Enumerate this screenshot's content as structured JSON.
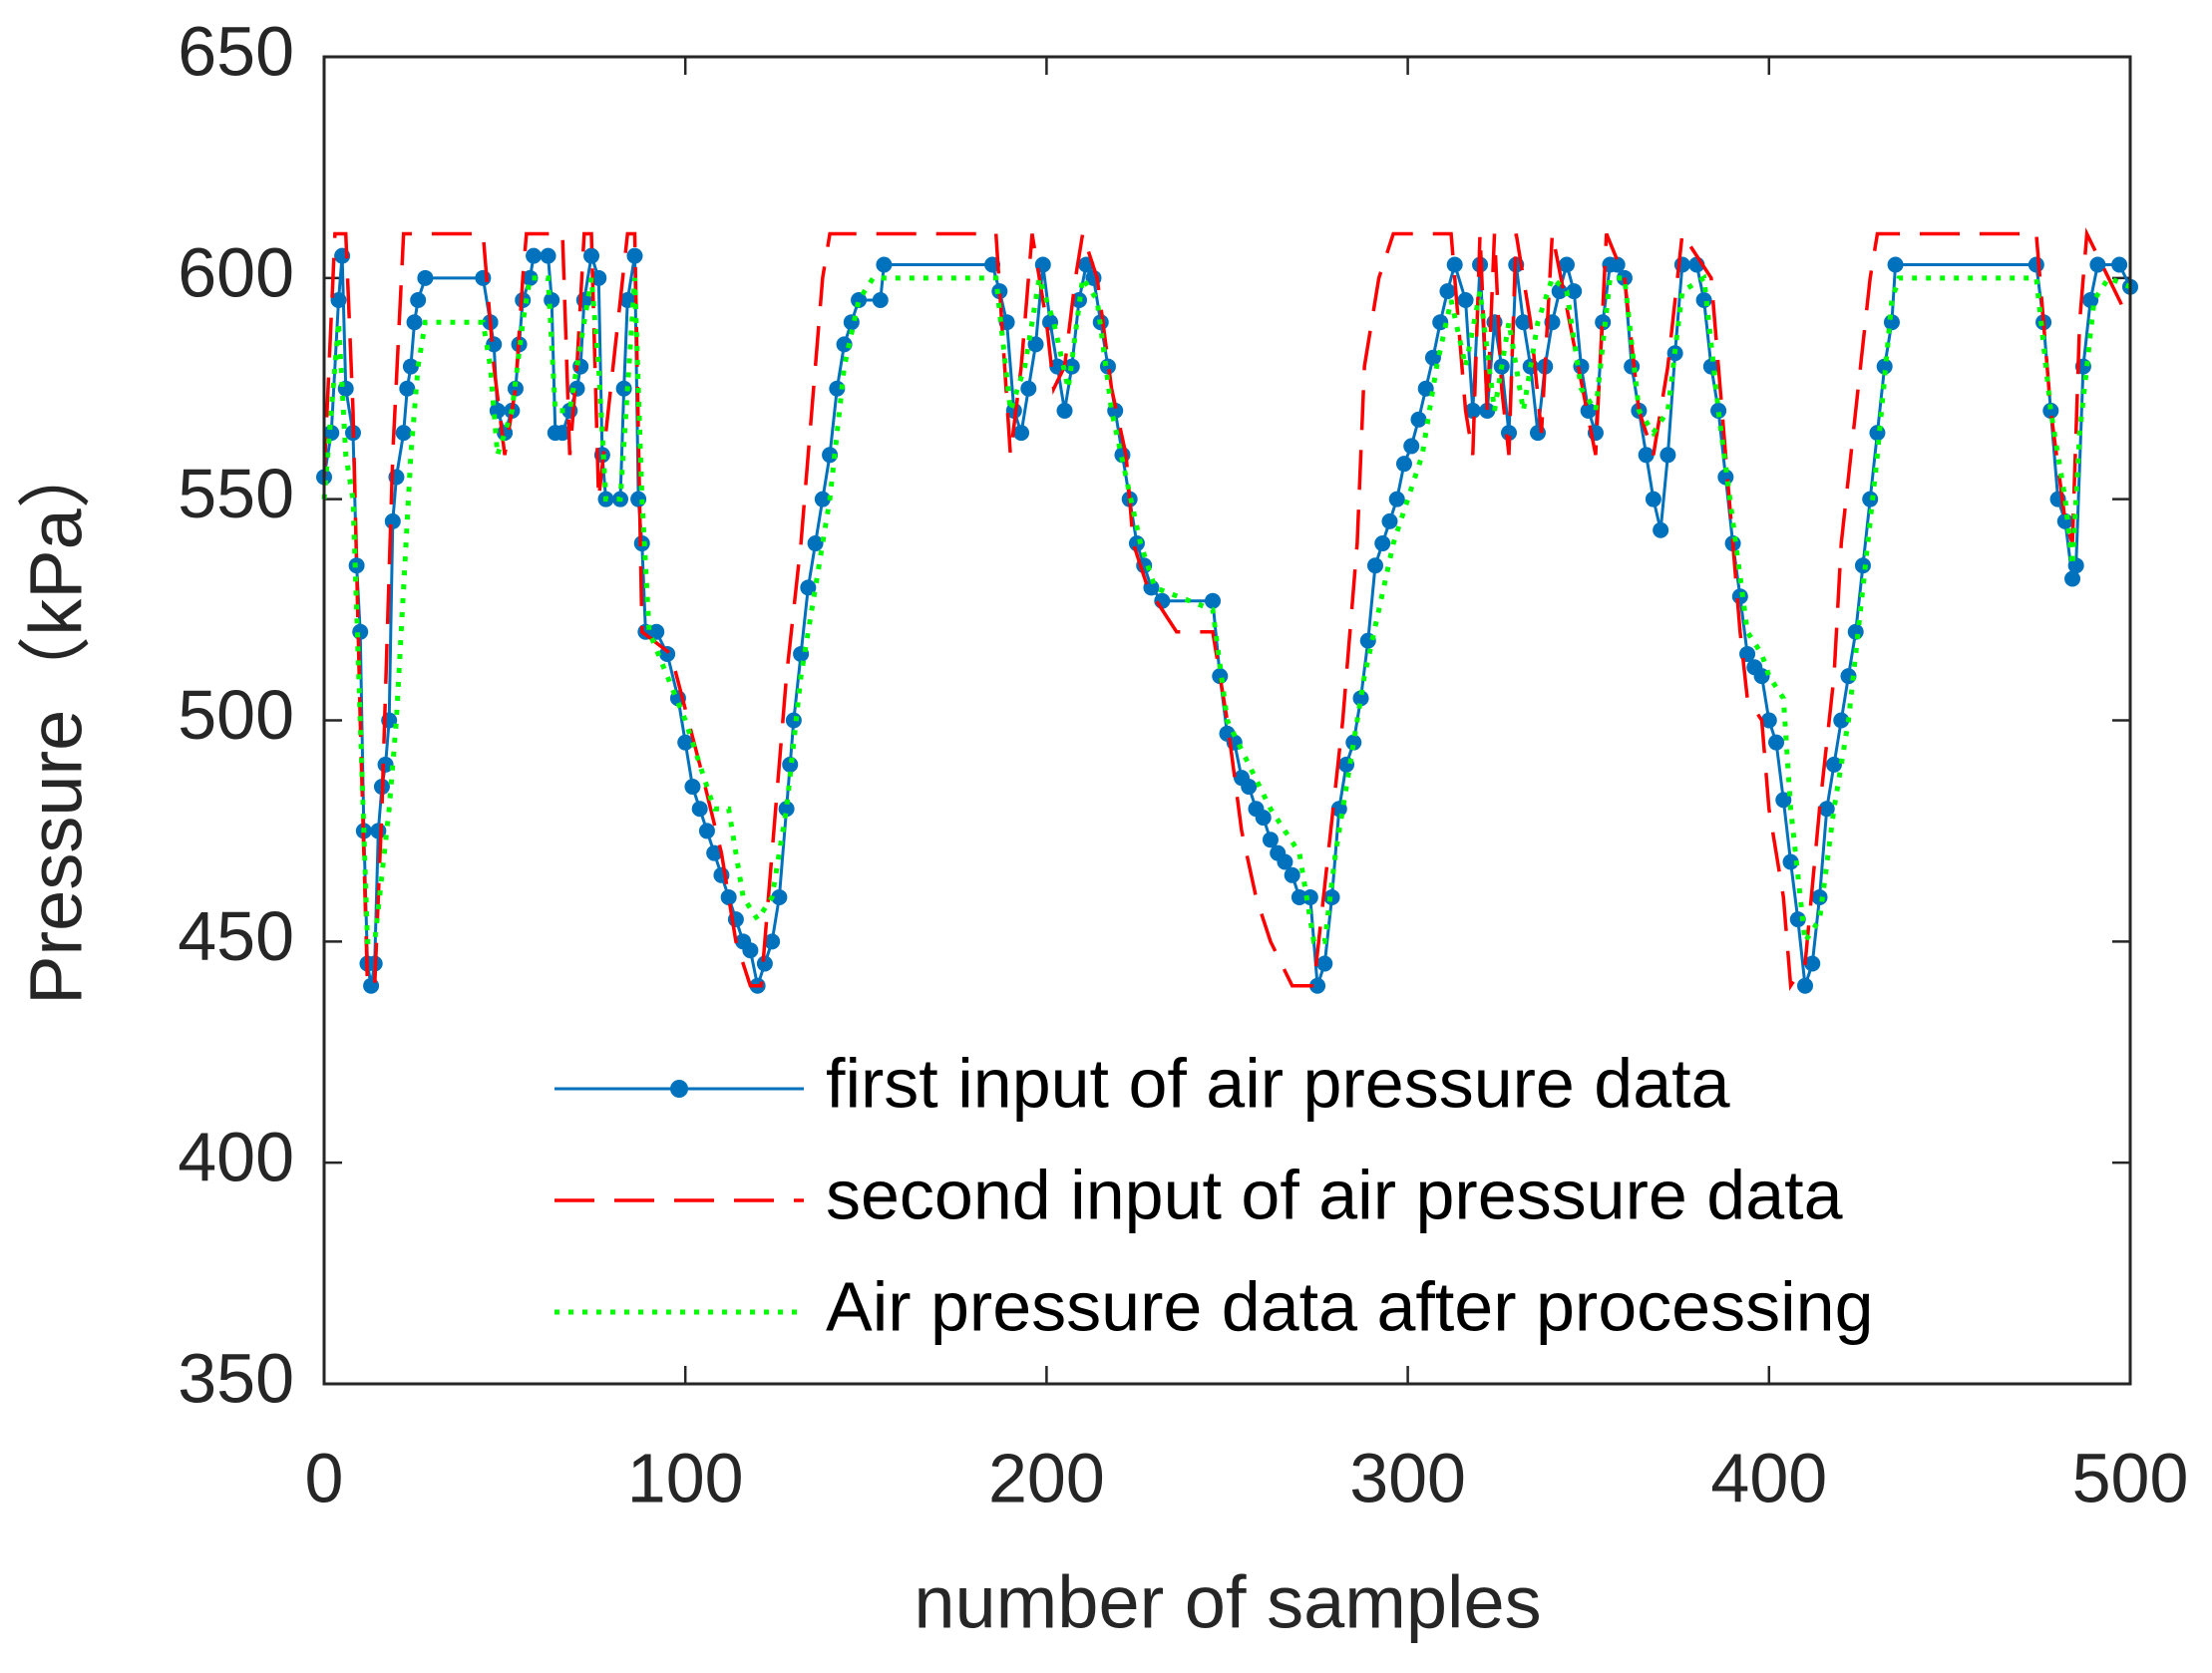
{
  "chart_data": {
    "type": "line",
    "xlabel": "number of samples",
    "ylabel": "Pressure（kPa）",
    "xlim": [
      0,
      500
    ],
    "xticks": [
      0,
      100,
      200,
      300,
      400,
      500
    ],
    "ylim": [
      350,
      650
    ],
    "yticks": [
      350,
      400,
      450,
      500,
      550,
      600,
      650
    ],
    "grid": false,
    "legend": "south",
    "series": [
      {
        "name": "first input of air pressure data",
        "color": "#0072BD",
        "style": "solid-marker",
        "x": [
          0,
          2,
          4,
          5,
          6,
          8,
          9,
          10,
          11,
          12,
          13,
          14,
          15,
          16,
          17,
          18,
          19,
          20,
          22,
          23,
          24,
          25,
          26,
          28,
          44,
          46,
          47,
          48,
          50,
          52,
          53,
          54,
          55,
          57,
          58,
          62,
          63,
          64,
          66,
          68,
          70,
          71,
          72,
          74,
          76,
          77,
          78,
          82,
          83,
          84,
          86,
          87,
          88,
          89,
          92,
          95,
          98,
          100,
          102,
          104,
          106,
          108,
          110,
          112,
          114,
          116,
          118,
          120,
          122,
          124,
          126,
          128,
          129,
          130,
          132,
          134,
          136,
          138,
          140,
          142,
          144,
          146,
          148,
          154,
          155,
          185,
          187,
          189,
          191,
          193,
          195,
          197,
          199,
          201,
          203,
          205,
          207,
          209,
          211,
          213,
          215,
          217,
          219,
          221,
          223,
          225,
          227,
          229,
          232,
          246,
          248,
          250,
          252,
          254,
          256,
          258,
          260,
          262,
          264,
          266,
          268,
          270,
          273,
          275,
          277,
          279,
          281,
          283,
          285,
          287,
          289,
          291,
          293,
          295,
          297,
          299,
          301,
          303,
          305,
          307,
          309,
          311,
          313,
          316,
          318,
          320,
          322,
          324,
          326,
          328,
          330,
          332,
          334,
          336,
          338,
          340,
          342,
          344,
          346,
          348,
          350,
          352,
          354,
          356,
          358,
          360,
          362,
          364,
          366,
          368,
          370,
          372,
          374,
          376,
          380,
          382,
          384,
          386,
          388,
          390,
          392,
          394,
          396,
          398,
          400,
          402,
          404,
          406,
          408,
          410,
          412,
          414,
          416,
          418,
          420,
          422,
          424,
          426,
          428,
          430,
          432,
          434,
          435,
          474,
          476,
          478,
          480,
          482,
          484,
          485,
          487,
          489,
          491,
          497,
          500
        ],
        "values": [
          555,
          565,
          595,
          605,
          575,
          565,
          535,
          520,
          475,
          445,
          440,
          445,
          475,
          485,
          490,
          500,
          545,
          555,
          565,
          575,
          580,
          590,
          595,
          600,
          600,
          590,
          585,
          570,
          565,
          570,
          575,
          585,
          595,
          600,
          605,
          605,
          595,
          565,
          565,
          570,
          575,
          580,
          595,
          605,
          600,
          560,
          550,
          550,
          575,
          595,
          605,
          550,
          540,
          520,
          520,
          515,
          505,
          495,
          485,
          480,
          475,
          470,
          465,
          460,
          455,
          450,
          448,
          440,
          445,
          450,
          460,
          480,
          490,
          500,
          515,
          530,
          540,
          550,
          560,
          575,
          585,
          590,
          595,
          595,
          603,
          603,
          597,
          590,
          570,
          565,
          575,
          585,
          603,
          590,
          580,
          570,
          580,
          595,
          603,
          600,
          590,
          580,
          570,
          560,
          550,
          540,
          535,
          530,
          527,
          527,
          510,
          497,
          495,
          487,
          485,
          480,
          478,
          473,
          470,
          468,
          465,
          460,
          460,
          440,
          445,
          460,
          480,
          490,
          495,
          505,
          518,
          535,
          540,
          545,
          550,
          558,
          562,
          568,
          575,
          582,
          590,
          597,
          603,
          595,
          570,
          603,
          570,
          590,
          580,
          565,
          603,
          590,
          580,
          565,
          580,
          590,
          597,
          603,
          597,
          580,
          570,
          565,
          590,
          603,
          603,
          600,
          580,
          570,
          560,
          550,
          543,
          560,
          583,
          603,
          603,
          595,
          580,
          570,
          555,
          540,
          528,
          515,
          512,
          510,
          500,
          495,
          482,
          468,
          455,
          440,
          445,
          460,
          480,
          490,
          500,
          510,
          520,
          535,
          550,
          565,
          580,
          590,
          603,
          603,
          590,
          570,
          550,
          545,
          532,
          535,
          580,
          595,
          603,
          603,
          598
        ]
      },
      {
        "name": "second input of air pressure data",
        "color": "#FF0000",
        "style": "dashed",
        "x": [
          0,
          3,
          6,
          8,
          10,
          12,
          14,
          16,
          19,
          22,
          34,
          44,
          47,
          50,
          53,
          55,
          56,
          66,
          68,
          70,
          72,
          74,
          76,
          84,
          86,
          88,
          96,
          104,
          110,
          114,
          118,
          121,
          124,
          128,
          132,
          136,
          138,
          140,
          186,
          188,
          190,
          193,
          196,
          200,
          202,
          205,
          208,
          210,
          214,
          218,
          222,
          224,
          228,
          236,
          246,
          250,
          254,
          258,
          262,
          268,
          274,
          278,
          282,
          286,
          288,
          290,
          292,
          296,
          312,
          316,
          318,
          320,
          322,
          324,
          326,
          328,
          330,
          334,
          337,
          340,
          352,
          355,
          360,
          364,
          368,
          372,
          376,
          384,
          386,
          388,
          392,
          394,
          398,
          400,
          404,
          406,
          410,
          414,
          418,
          420,
          424,
          428,
          430,
          474,
          476,
          478,
          482,
          484,
          486,
          488,
          500
        ],
        "values": [
          555,
          610,
          610,
          570,
          500,
          440,
          440,
          480,
          560,
          610,
          610,
          610,
          580,
          560,
          575,
          600,
          610,
          610,
          560,
          580,
          610,
          610,
          550,
          610,
          610,
          520,
          515,
          490,
          470,
          450,
          440,
          440,
          470,
          510,
          540,
          580,
          600,
          610,
          610,
          585,
          560,
          580,
          610,
          590,
          575,
          580,
          600,
          610,
          600,
          575,
          560,
          540,
          530,
          520,
          520,
          500,
          475,
          460,
          450,
          440,
          440,
          470,
          500,
          540,
          580,
          590,
          600,
          610,
          610,
          570,
          560,
          610,
          570,
          610,
          575,
          560,
          610,
          590,
          565,
          610,
          560,
          610,
          600,
          570,
          560,
          580,
          610,
          600,
          580,
          560,
          520,
          505,
          500,
          480,
          460,
          440,
          445,
          480,
          510,
          540,
          570,
          600,
          610,
          610,
          590,
          570,
          545,
          540,
          590,
          610,
          590
        ]
      },
      {
        "name": "Air pressure data after processing",
        "color": "#00FF00",
        "style": "dotted",
        "x": [
          0,
          4,
          6,
          8,
          10,
          12,
          14,
          18,
          20,
          22,
          24,
          26,
          28,
          44,
          46,
          48,
          52,
          55,
          57,
          62,
          64,
          68,
          72,
          74,
          76,
          78,
          82,
          86,
          88,
          90,
          100,
          104,
          108,
          112,
          116,
          120,
          124,
          128,
          132,
          136,
          140,
          144,
          148,
          152,
          186,
          190,
          194,
          198,
          202,
          206,
          210,
          214,
          218,
          222,
          226,
          230,
          246,
          250,
          256,
          262,
          266,
          270,
          274,
          277,
          280,
          284,
          288,
          292,
          296,
          300,
          304,
          308,
          312,
          316,
          320,
          324,
          328,
          332,
          336,
          340,
          344,
          348,
          352,
          356,
          360,
          364,
          368,
          372,
          376,
          382,
          386,
          390,
          394,
          398,
          400,
          404,
          406,
          410,
          414,
          418,
          422,
          426,
          430,
          434,
          436,
          474,
          478,
          482,
          484,
          486,
          490,
          494,
          500
        ],
        "values": [
          550,
          590,
          560,
          550,
          500,
          450,
          450,
          480,
          500,
          530,
          560,
          580,
          590,
          590,
          580,
          560,
          570,
          590,
          600,
          600,
          570,
          570,
          590,
          600,
          580,
          550,
          550,
          600,
          550,
          520,
          500,
          490,
          480,
          480,
          460,
          455,
          460,
          480,
          510,
          530,
          550,
          580,
          595,
          600,
          600,
          570,
          580,
          600,
          590,
          575,
          600,
          595,
          570,
          555,
          540,
          530,
          525,
          500,
          490,
          480,
          475,
          470,
          450,
          450,
          470,
          490,
          510,
          525,
          540,
          550,
          560,
          580,
          595,
          580,
          597,
          570,
          590,
          570,
          590,
          600,
          597,
          575,
          570,
          600,
          600,
          570,
          565,
          570,
          597,
          600,
          570,
          545,
          520,
          515,
          510,
          505,
          480,
          450,
          455,
          480,
          500,
          530,
          560,
          595,
          600,
          600,
          570,
          550,
          535,
          565,
          595,
          600,
          598
        ]
      }
    ]
  }
}
